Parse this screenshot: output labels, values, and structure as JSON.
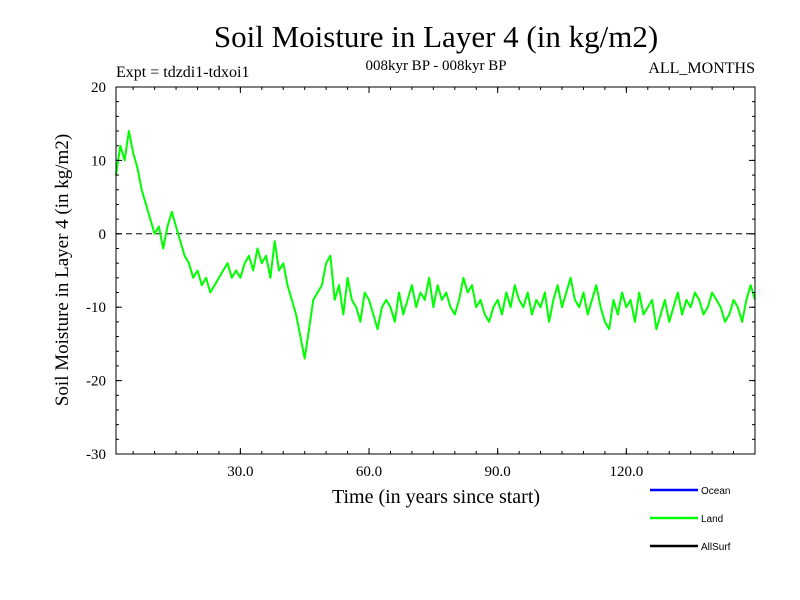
{
  "chart_data": {
    "type": "line",
    "title": "Soil Moisture in Layer 4 (in kg/m2)",
    "subtitle_left": "Expt = tdzdi1-tdxoi1",
    "subtitle_center": "008kyr BP - 008kyr BP",
    "subtitle_right": "ALL_MONTHS",
    "xlabel": "Time (in years since start)",
    "ylabel": "Soil Moisture in Layer 4 (in kg/m2)",
    "xlim": [
      1,
      150
    ],
    "ylim": [
      -30,
      20
    ],
    "xticks": [
      30,
      60,
      90,
      120
    ],
    "xtick_labels": [
      "30.0",
      "60.0",
      "90.0",
      "120.0"
    ],
    "yticks": [
      20,
      10,
      0,
      -10,
      -20,
      -30
    ],
    "ytick_labels": [
      "20",
      "10",
      "0",
      "-10",
      "-20",
      "-30"
    ],
    "reference_line": 0,
    "legend": [
      {
        "name": "Ocean",
        "color": "#0000ff"
      },
      {
        "name": "Land",
        "color": "#00ff00"
      },
      {
        "name": "AllSurf",
        "color": "#000000"
      }
    ],
    "series": [
      {
        "name": "Land",
        "color": "#00ff00",
        "x": [
          1,
          2,
          3,
          4,
          5,
          6,
          7,
          8,
          9,
          10,
          11,
          12,
          13,
          14,
          15,
          16,
          17,
          18,
          19,
          20,
          21,
          22,
          23,
          24,
          25,
          26,
          27,
          28,
          29,
          30,
          31,
          32,
          33,
          34,
          35,
          36,
          37,
          38,
          39,
          40,
          41,
          42,
          43,
          44,
          45,
          46,
          47,
          48,
          49,
          50,
          51,
          52,
          53,
          54,
          55,
          56,
          57,
          58,
          59,
          60,
          61,
          62,
          63,
          64,
          65,
          66,
          67,
          68,
          69,
          70,
          71,
          72,
          73,
          74,
          75,
          76,
          77,
          78,
          79,
          80,
          81,
          82,
          83,
          84,
          85,
          86,
          87,
          88,
          89,
          90,
          91,
          92,
          93,
          94,
          95,
          96,
          97,
          98,
          99,
          100,
          101,
          102,
          103,
          104,
          105,
          106,
          107,
          108,
          109,
          110,
          111,
          112,
          113,
          114,
          115,
          116,
          117,
          118,
          119,
          120,
          121,
          122,
          123,
          124,
          125,
          126,
          127,
          128,
          129,
          130,
          131,
          132,
          133,
          134,
          135,
          136,
          137,
          138,
          139,
          140,
          141,
          142,
          143,
          144,
          145,
          146,
          147,
          148,
          149,
          150
        ],
        "values": [
          8,
          12,
          10,
          14,
          11,
          9,
          6,
          4,
          2,
          0,
          1,
          -2,
          1,
          3,
          1,
          -1,
          -3,
          -4,
          -6,
          -5,
          -7,
          -6,
          -8,
          -7,
          -6,
          -5,
          -4,
          -6,
          -5,
          -6,
          -4,
          -3,
          -5,
          -2,
          -4,
          -3,
          -6,
          -1,
          -5,
          -4,
          -7,
          -9,
          -11,
          -14,
          -17,
          -13,
          -9,
          -8,
          -7,
          -4,
          -3,
          -9,
          -7,
          -11,
          -6,
          -9,
          -10,
          -12,
          -8,
          -9,
          -11,
          -13,
          -10,
          -9,
          -10,
          -12,
          -8,
          -11,
          -9,
          -7,
          -10,
          -8,
          -9,
          -6,
          -10,
          -7,
          -9,
          -8,
          -10,
          -11,
          -9,
          -6,
          -8,
          -7,
          -10,
          -9,
          -11,
          -12,
          -10,
          -9,
          -11,
          -8,
          -10,
          -7,
          -9,
          -10,
          -8,
          -11,
          -9,
          -10,
          -8,
          -12,
          -9,
          -7,
          -10,
          -8,
          -6,
          -9,
          -10,
          -8,
          -11,
          -9,
          -7,
          -10,
          -12,
          -13,
          -9,
          -11,
          -8,
          -10,
          -9,
          -12,
          -8,
          -11,
          -10,
          -9,
          -13,
          -11,
          -9,
          -12,
          -10,
          -8,
          -11,
          -9,
          -10,
          -8,
          -9,
          -11,
          -10,
          -8,
          -9,
          -10,
          -12,
          -11,
          -9,
          -10,
          -12,
          -9,
          -7,
          -9
        ]
      }
    ]
  }
}
